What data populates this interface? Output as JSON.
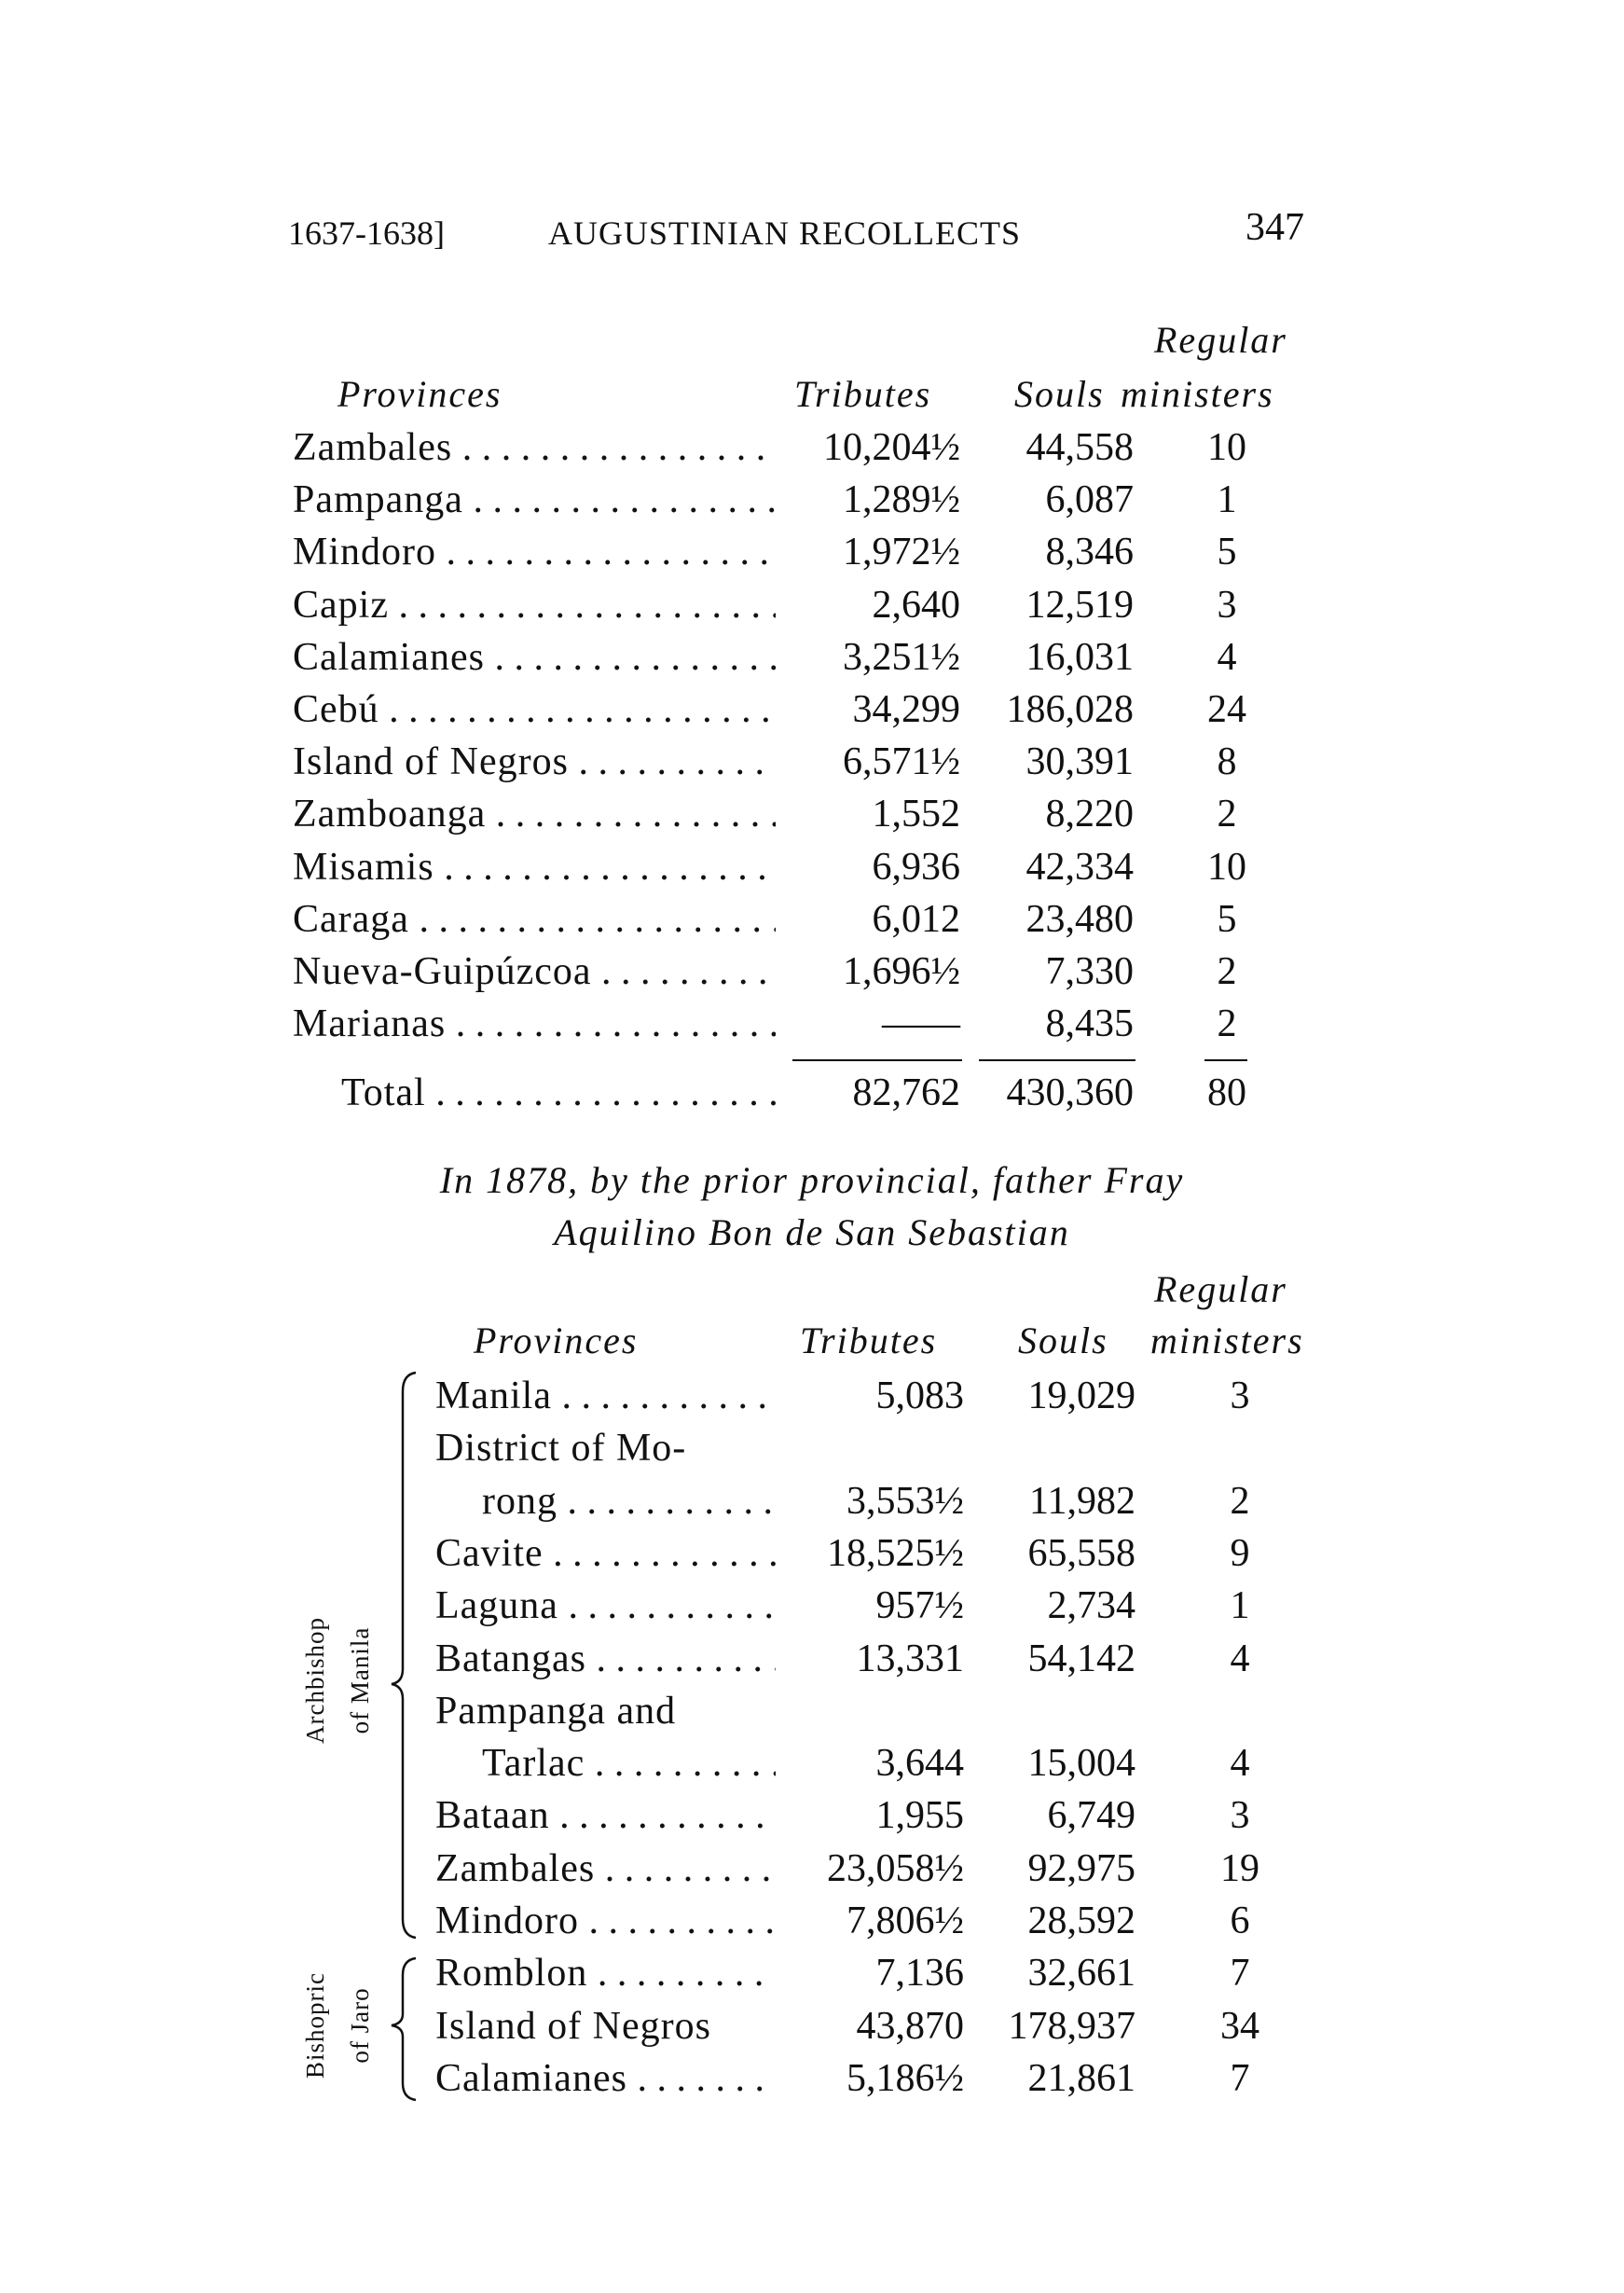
{
  "header": {
    "years": "1637-1638]",
    "title": "AUGUSTINIAN RECOLLECTS",
    "page_number": "347"
  },
  "table1": {
    "columns": {
      "provinces": "Provinces",
      "tributes": "Tributes",
      "souls": "Souls",
      "ministers_line1": "Regular",
      "ministers_line2": "ministers"
    },
    "rows": [
      {
        "name": "Zambales",
        "tributes": "10,204½",
        "souls": "44,558",
        "ministers": "10"
      },
      {
        "name": "Pampanga",
        "tributes": "1,289½",
        "souls": "6,087",
        "ministers": "1"
      },
      {
        "name": "Mindoro",
        "tributes": "1,972½",
        "souls": "8,346",
        "ministers": "5"
      },
      {
        "name": "Capiz",
        "tributes": "2,640",
        "souls": "12,519",
        "ministers": "3"
      },
      {
        "name": "Calamianes",
        "tributes": "3,251½",
        "souls": "16,031",
        "ministers": "4"
      },
      {
        "name": "Cebú",
        "tributes": "34,299",
        "souls": "186,028",
        "ministers": "24"
      },
      {
        "name": "Island of Negros",
        "tributes": "6,571½",
        "souls": "30,391",
        "ministers": "8"
      },
      {
        "name": "Zamboanga",
        "tributes": "1,552",
        "souls": "8,220",
        "ministers": "2"
      },
      {
        "name": "Misamis",
        "tributes": "6,936",
        "souls": "42,334",
        "ministers": "10"
      },
      {
        "name": "Caraga",
        "tributes": "6,012",
        "souls": "23,480",
        "ministers": "5"
      },
      {
        "name": "Nueva-Guipúzcoa",
        "tributes": "1,696½",
        "souls": "7,330",
        "ministers": "2"
      },
      {
        "name": "Marianas",
        "tributes": "——",
        "souls": "8,435",
        "ministers": "2"
      }
    ],
    "total": {
      "name": "Total",
      "tributes": "82,762",
      "souls": "430,360",
      "ministers": "80"
    }
  },
  "caption": {
    "line1": "In 1878, by the prior provincial, father Fray",
    "line2": "Aquilino Bon de San Sebastian"
  },
  "table2": {
    "columns": {
      "provinces": "Provinces",
      "tributes": "Tributes",
      "souls": "Souls",
      "ministers_line1": "Regular",
      "ministers_line2": "ministers"
    },
    "groups": [
      {
        "label_line1": "Archbishop",
        "label_line2": "of Manila"
      },
      {
        "label_line1": "Bishopric",
        "label_line2": "of Jaro"
      }
    ],
    "rows": [
      {
        "name": "Manila",
        "tributes": "5,083",
        "souls": "19,029",
        "ministers": "3"
      },
      {
        "name": "District of Mo-",
        "tributes": "",
        "souls": "",
        "ministers": "",
        "continued": true
      },
      {
        "name": "rong",
        "tributes": "3,553½",
        "souls": "11,982",
        "ministers": "2",
        "indent": true
      },
      {
        "name": "Cavite",
        "tributes": "18,525½",
        "souls": "65,558",
        "ministers": "9"
      },
      {
        "name": "Laguna",
        "tributes": "957½",
        "souls": "2,734",
        "ministers": "1"
      },
      {
        "name": "Batangas",
        "tributes": "13,331",
        "souls": "54,142",
        "ministers": "4"
      },
      {
        "name": "Pampanga and",
        "tributes": "",
        "souls": "",
        "ministers": "",
        "continued": true
      },
      {
        "name": "Tarlac",
        "tributes": "3,644",
        "souls": "15,004",
        "ministers": "4",
        "indent": true
      },
      {
        "name": "Bataan",
        "tributes": "1,955",
        "souls": "6,749",
        "ministers": "3"
      },
      {
        "name": "Zambales",
        "tributes": "23,058½",
        "souls": "92,975",
        "ministers": "19"
      },
      {
        "name": "Mindoro",
        "tributes": "7,806½",
        "souls": "28,592",
        "ministers": "6"
      },
      {
        "name": "Romblon",
        "tributes": "7,136",
        "souls": "32,661",
        "ministers": "7"
      },
      {
        "name": "Island of Negros",
        "tributes": "43,870",
        "souls": "178,937",
        "ministers": "34",
        "nodots": true
      },
      {
        "name": "Calamianes",
        "tributes": "5,186½",
        "souls": "21,861",
        "ministers": "7"
      }
    ]
  }
}
